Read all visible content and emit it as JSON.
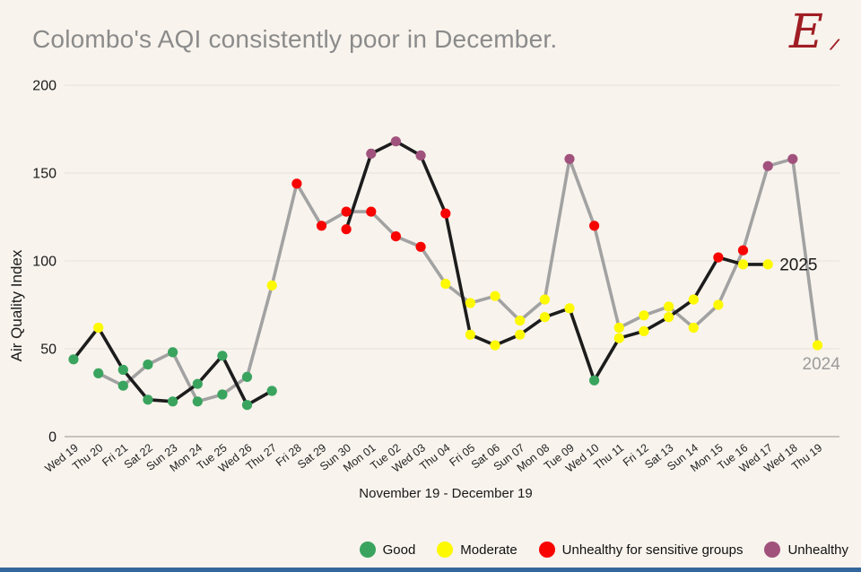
{
  "title": "Colombo's AQI consistently poor in December.",
  "logo": {
    "letter": "E",
    "slashes": "⁄⁄"
  },
  "colors": {
    "background": "#f8f3ed",
    "title_text": "#8b8b8b",
    "grid_line": "#e8e2da",
    "zero_axis_line": "#b9b3ac",
    "tick_text": "#1a1a1a",
    "logo_red": "#a01d24",
    "bottom_bar_blue": "#33669a",
    "series_2025_line": "#1c1c1c",
    "series_2024_line": "#a2a2a2",
    "label_2025_text": "#1a1a1a",
    "label_2024_text": "#9b9b9b"
  },
  "chart_data": {
    "type": "line",
    "title": "Colombo's AQI consistently poor in December.",
    "ylabel": "Air Quality Index",
    "xlabel": "November 19 - December 19",
    "ylim": [
      0,
      200
    ],
    "yticks": [
      0,
      50,
      100,
      150,
      200
    ],
    "grid": true,
    "legend_position": "bottom-right",
    "categories": [
      "Wed 19",
      "Thu 20",
      "Fri 21",
      "Sat 22",
      "Sun 23",
      "Mon 24",
      "Tue 25",
      "Wed 26",
      "Thu 27",
      "Fri 28",
      "Sat 29",
      "Sun 30",
      "Mon 01",
      "Tue 02",
      "Wed 03",
      "Thu 04",
      "Fri 05",
      "Sat 06",
      "Sun 07",
      "Mon 08",
      "Tue 09",
      "Wed 10",
      "Thu 11",
      "Fri 12",
      "Sat 13",
      "Sun 14",
      "Mon 15",
      "Tue 16",
      "Wed 17",
      "Wed 18",
      "Thu 19"
    ],
    "series": [
      {
        "name": "2025",
        "color": "#1c1c1c",
        "label_color": "#1a1a1a",
        "values": [
          44,
          62,
          38,
          21,
          20,
          30,
          46,
          18,
          26,
          null,
          null,
          118,
          161,
          168,
          160,
          127,
          58,
          52,
          58,
          68,
          73,
          32,
          56,
          60,
          68,
          78,
          102,
          98,
          98,
          null,
          null
        ]
      },
      {
        "name": "2024",
        "color": "#a2a2a2",
        "label_color": "#9b9b9b",
        "values": [
          null,
          36,
          29,
          41,
          48,
          20,
          24,
          34,
          86,
          144,
          120,
          128,
          128,
          114,
          108,
          87,
          76,
          80,
          66,
          78,
          158,
          120,
          62,
          69,
          74,
          62,
          75,
          106,
          154,
          158,
          52
        ]
      }
    ],
    "point_color_rule": "AQI level of each value",
    "aqi_levels": [
      {
        "label": "Good",
        "max": 50,
        "color": "#3aa45e"
      },
      {
        "label": "Moderate",
        "max": 100,
        "color": "#fdf900"
      },
      {
        "label": "Unhealthy for sensitive groups",
        "max": 150,
        "color": "#f80400"
      },
      {
        "label": "Unhealthy",
        "max": 200,
        "color": "#a1527c"
      }
    ]
  },
  "legend": {
    "items": [
      {
        "label": "Good",
        "color": "#3aa45e"
      },
      {
        "label": "Moderate",
        "color": "#fdf900"
      },
      {
        "label": "Unhealthy for sensitive groups",
        "color": "#f80400"
      },
      {
        "label": "Unhealthy",
        "color": "#a1527c"
      }
    ]
  }
}
